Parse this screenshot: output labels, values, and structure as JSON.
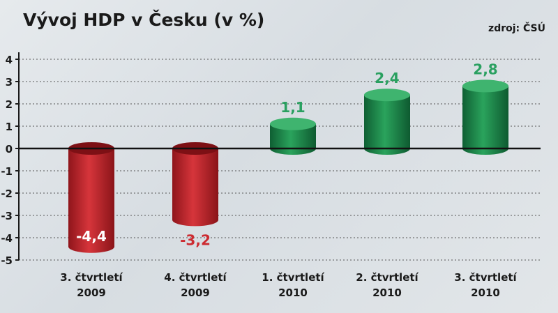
{
  "title": "Vývoj HDP v Česku (v %)",
  "source": "zdroj: ČSÚ",
  "colors": {
    "negative": "#b5252b",
    "positive": "#1e8a4e",
    "negative_label_outside": "#cc2b31",
    "positive_label": "#2aa060"
  },
  "chart_data": {
    "type": "bar",
    "title": "Vývoj HDP v Česku (v %)",
    "categories": [
      [
        "3. čtvrtletí",
        "2009"
      ],
      [
        "4. čtvrtletí",
        "2009"
      ],
      [
        "1. čtvrtletí",
        "2010"
      ],
      [
        "2. čtvrtletí",
        "2010"
      ],
      [
        "3. čtvrtletí",
        "2010"
      ]
    ],
    "values": [
      -4.4,
      -3.2,
      1.1,
      2.4,
      2.8
    ],
    "value_labels": [
      "-4,4",
      "-3,2",
      "1,1",
      "2,4",
      "2,8"
    ],
    "yticks": [
      4,
      3,
      2,
      1,
      0,
      -1,
      -2,
      -3,
      -4,
      -5
    ],
    "ylim": [
      -5,
      4
    ],
    "grid": "dotted horizontal",
    "legend": "none"
  }
}
